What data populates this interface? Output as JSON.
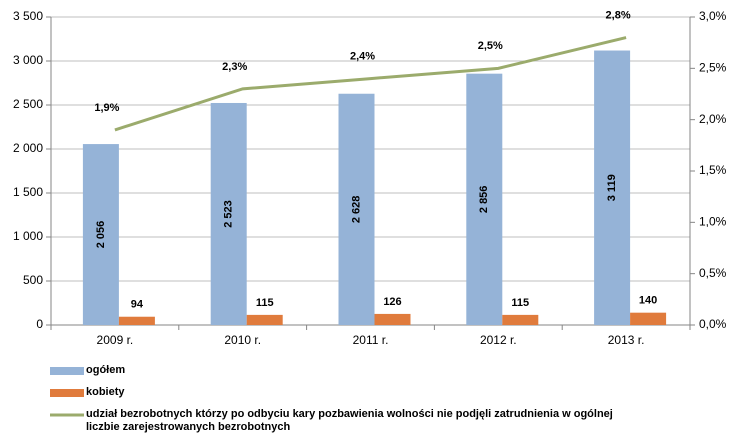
{
  "chart_data": {
    "type": "bar",
    "categories": [
      "2009 r.",
      "2010 r.",
      "2011 r.",
      "2012 r.",
      "2013 r."
    ],
    "series": [
      {
        "name": "ogółem",
        "color": "#95b3d7",
        "values": [
          2056,
          2523,
          2628,
          2856,
          3119
        ],
        "value_labels": [
          "2 056",
          "2 523",
          "2 628",
          "2 856",
          "3 119"
        ]
      },
      {
        "name": "kobiety",
        "color": "#e07b3c",
        "values": [
          94,
          115,
          126,
          115,
          140
        ]
      },
      {
        "name": "udział bezrobotnych którzy po odbyciu kary pozbawienia wolności nie podjęli zatrudnienia w ogólnej liczbie zarejestrowanych bezrobotnych",
        "type": "line",
        "axis": "y2",
        "color": "#9bab6c",
        "values": [
          1.9,
          2.3,
          2.4,
          2.5,
          2.8
        ],
        "value_labels": [
          "1,9%",
          "2,3%",
          "2,4%",
          "2,5%",
          "2,8%"
        ]
      }
    ],
    "ylim": [
      0,
      3500
    ],
    "yticks": [
      0,
      {
        "value": 500,
        "label": "500"
      },
      {
        "value": 1000,
        "label": "1 000"
      },
      {
        "value": 1500,
        "label": "1 500"
      },
      {
        "value": 2000,
        "label": "2 000"
      },
      {
        "value": 2500,
        "label": "2 500"
      },
      {
        "value": 3000,
        "label": "3 000"
      },
      {
        "value": 3500,
        "label": "3 500"
      }
    ],
    "y2lim": [
      0,
      3.0
    ],
    "y2ticks": [
      {
        "value": 0,
        "label": "0,0%"
      },
      {
        "value": 0.5,
        "label": "0,5%"
      },
      {
        "value": 1.0,
        "label": "1,0%"
      },
      {
        "value": 1.5,
        "label": "1,5%"
      },
      {
        "value": 2.0,
        "label": "2,0%"
      },
      {
        "value": 2.5,
        "label": "2,5%"
      },
      {
        "value": 3.0,
        "label": "3,0%"
      }
    ],
    "grid": true
  }
}
